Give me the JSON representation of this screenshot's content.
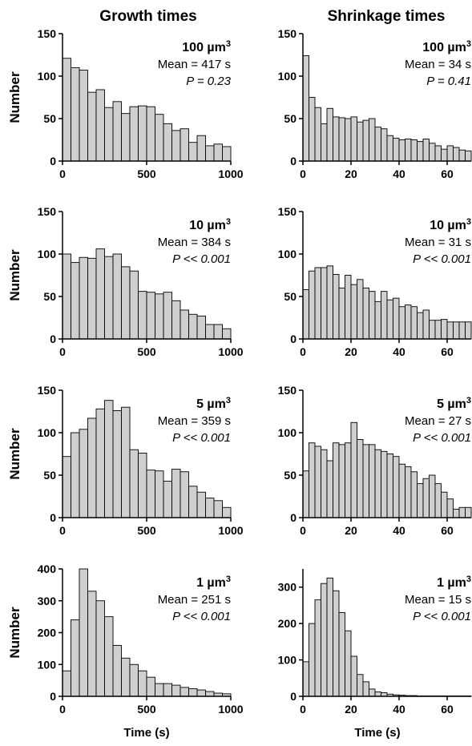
{
  "columns": [
    "Growth times",
    "Shrinkage times"
  ],
  "ylabel": "Number",
  "xlabel": "Time (s)",
  "chart_data": [
    {
      "type": "bar",
      "title": "100 µm³",
      "mean": "Mean = 417 s",
      "p": "P = 0.23",
      "xlim": [
        0,
        1000
      ],
      "ylim": [
        0,
        150
      ],
      "xticks": [
        0,
        500,
        1000
      ],
      "yticks": [
        0,
        50,
        100,
        150
      ],
      "bin_width": 50,
      "values": [
        121,
        110,
        107,
        81,
        84,
        63,
        70,
        56,
        64,
        65,
        64,
        55,
        44,
        36,
        38,
        22,
        30,
        18,
        20,
        17,
        12
      ]
    },
    {
      "type": "bar",
      "title": "100 µm³",
      "mean": "Mean = 34 s",
      "p": "P = 0.41",
      "xlim": [
        0,
        70
      ],
      "ylim": [
        0,
        150
      ],
      "xticks": [
        0,
        20,
        40,
        60
      ],
      "yticks": [
        0,
        50,
        100,
        150
      ],
      "bin_width": 2.5,
      "values": [
        124,
        75,
        63,
        44,
        62,
        52,
        51,
        50,
        52,
        46,
        48,
        50,
        40,
        38,
        30,
        27,
        25,
        26,
        25,
        23,
        26,
        21,
        18,
        14,
        18,
        16,
        13,
        12
      ]
    },
    {
      "type": "bar",
      "title": "10 µm³",
      "mean": "Mean = 384 s",
      "p": "P << 0.001",
      "xlim": [
        0,
        1000
      ],
      "ylim": [
        0,
        150
      ],
      "xticks": [
        0,
        500,
        1000
      ],
      "yticks": [
        0,
        50,
        100,
        150
      ],
      "bin_width": 50,
      "values": [
        100,
        90,
        96,
        95,
        106,
        97,
        100,
        85,
        80,
        56,
        55,
        53,
        55,
        45,
        34,
        29,
        27,
        17,
        17,
        12,
        10
      ]
    },
    {
      "type": "bar",
      "title": "10 µm³",
      "mean": "Mean = 31 s",
      "p": "P << 0.001",
      "xlim": [
        0,
        70
      ],
      "ylim": [
        0,
        150
      ],
      "xticks": [
        0,
        20,
        40,
        60
      ],
      "yticks": [
        0,
        50,
        100,
        150
      ],
      "bin_width": 2.5,
      "values": [
        58,
        80,
        84,
        84,
        86,
        76,
        60,
        75,
        64,
        70,
        60,
        56,
        44,
        56,
        46,
        48,
        38,
        40,
        38,
        31,
        34,
        22,
        22,
        23,
        20,
        20,
        20,
        20
      ]
    },
    {
      "type": "bar",
      "title": "5 µm³",
      "mean": "Mean = 359 s",
      "p": "P << 0.001",
      "xlim": [
        0,
        1000
      ],
      "ylim": [
        0,
        150
      ],
      "xticks": [
        0,
        500,
        1000
      ],
      "yticks": [
        0,
        50,
        100,
        150
      ],
      "bin_width": 50,
      "values": [
        72,
        100,
        104,
        117,
        128,
        138,
        126,
        130,
        80,
        76,
        56,
        55,
        43,
        57,
        54,
        37,
        30,
        23,
        20,
        12,
        5
      ]
    },
    {
      "type": "bar",
      "title": "5 µm³",
      "mean": "Mean = 27 s",
      "p": "P << 0.001",
      "xlim": [
        0,
        70
      ],
      "ylim": [
        0,
        150
      ],
      "xticks": [
        0,
        20,
        40,
        60
      ],
      "yticks": [
        0,
        50,
        100,
        150
      ],
      "bin_width": 2.5,
      "values": [
        55,
        88,
        84,
        80,
        67,
        88,
        86,
        88,
        112,
        92,
        86,
        86,
        80,
        78,
        75,
        72,
        63,
        60,
        54,
        40,
        46,
        50,
        40,
        30,
        22,
        10,
        12,
        12
      ]
    },
    {
      "type": "bar",
      "title": "1 µm³",
      "mean": "Mean = 251 s",
      "p": "P << 0.001",
      "xlim": [
        0,
        1000
      ],
      "ylim": [
        0,
        400
      ],
      "xticks": [
        0,
        500,
        1000
      ],
      "yticks": [
        0,
        100,
        200,
        300,
        400
      ],
      "bin_width": 50,
      "values": [
        80,
        240,
        400,
        330,
        300,
        250,
        160,
        120,
        100,
        80,
        60,
        40,
        40,
        35,
        28,
        24,
        20,
        15,
        10,
        8,
        5
      ]
    },
    {
      "type": "bar",
      "title": "1 µm³",
      "mean": "Mean = 15 s",
      "p": "P << 0.001",
      "xlim": [
        0,
        70
      ],
      "ylim": [
        0,
        350
      ],
      "xticks": [
        0,
        20,
        40,
        60
      ],
      "yticks": [
        0,
        100,
        200,
        300
      ],
      "bin_width": 2.5,
      "values": [
        95,
        200,
        265,
        310,
        325,
        290,
        230,
        180,
        110,
        60,
        40,
        20,
        12,
        10,
        6,
        4,
        3,
        2,
        2,
        1,
        1,
        1,
        1,
        1,
        1,
        1,
        1,
        1
      ]
    }
  ]
}
